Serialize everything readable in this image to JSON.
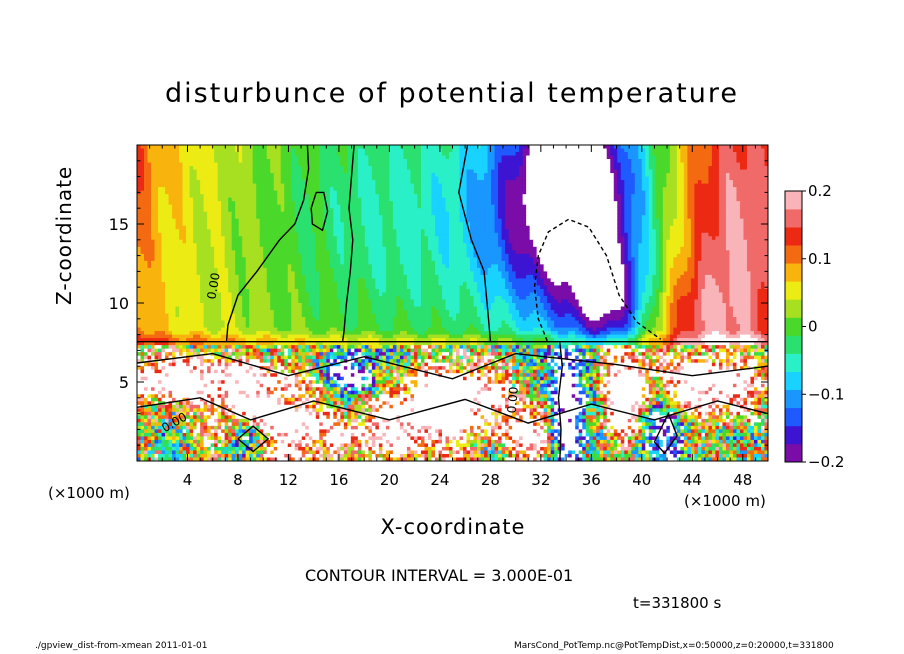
{
  "chart_data": {
    "type": "heatmap",
    "title": "disturbunce of potential temperature",
    "xlabel": "X-coordinate",
    "ylabel": "Z-coordinate",
    "x_unit_label": "(×1000 m)",
    "xlim": [
      0,
      50
    ],
    "ylim": [
      0,
      20
    ],
    "x_ticks": [
      4,
      8,
      12,
      16,
      20,
      24,
      28,
      32,
      36,
      40,
      44,
      48
    ],
    "y_ticks": [
      5,
      10,
      15
    ],
    "colorbar": {
      "range": [
        -0.2,
        0.2
      ],
      "ticks": [
        "0.2",
        "0.1",
        "0",
        "−0.1",
        "−0.2"
      ],
      "tick_values": [
        0.2,
        0.1,
        0,
        -0.1,
        -0.2
      ],
      "colors": [
        "#7a0ca8",
        "#3c14d2",
        "#1e5aff",
        "#1a96ff",
        "#19d2ff",
        "#2af0c8",
        "#2ae06e",
        "#4ad82a",
        "#a6e020",
        "#ecec14",
        "#f8b40c",
        "#f46a10",
        "#ec2a14",
        "#f06a6a",
        "#f8b4b8"
      ],
      "over_color": "#ffffff",
      "under_color": "#ffffff"
    },
    "contour_labels": [
      "0.00",
      "0.00",
      "0.00"
    ],
    "contour_interval": "CONTOUR INTERVAL = 3.000E-01",
    "time": "t=331800 s"
  },
  "footer": {
    "left": "./gpview_dist-from-xmean  2011-01-01",
    "right": "MarsCond_PotTemp.nc@PotTempDist,x=0:50000,z=0:20000,t=331800"
  },
  "colors": {
    "axis": "#000000",
    "background": "#ffffff"
  }
}
